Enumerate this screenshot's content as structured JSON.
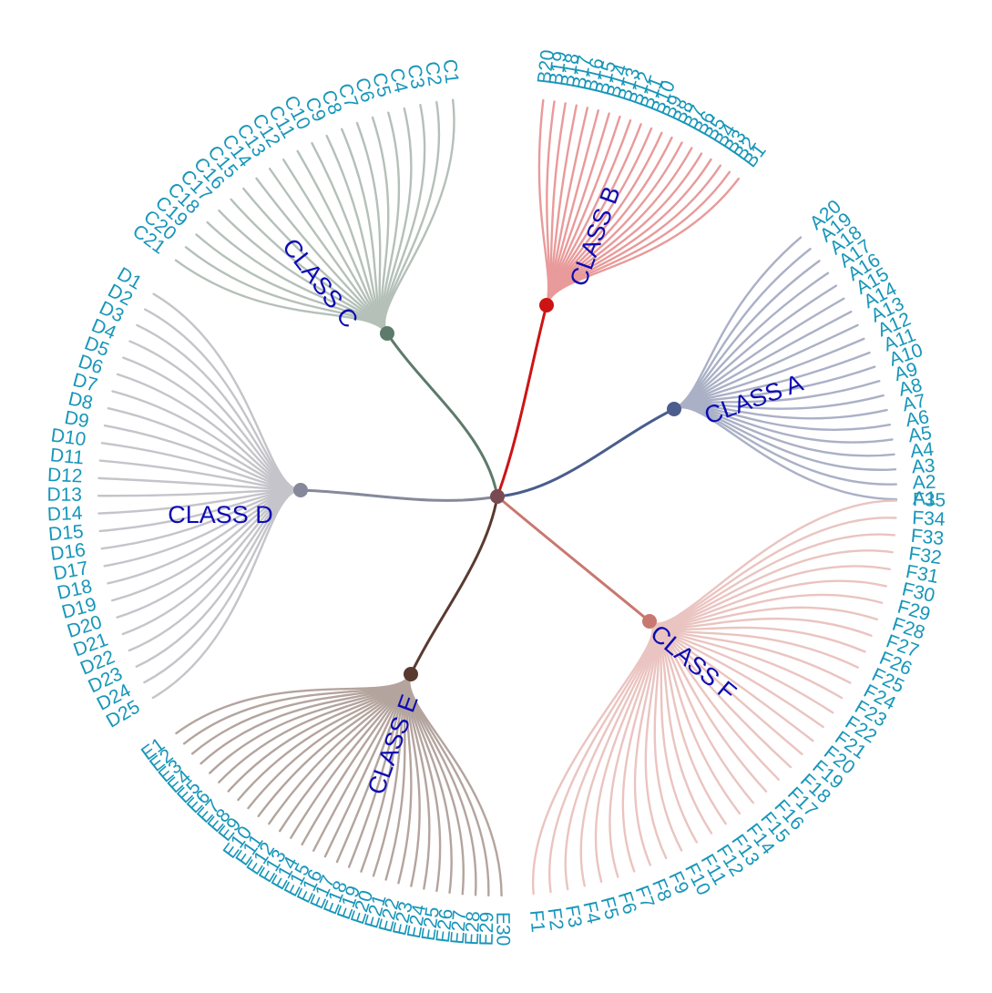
{
  "root": {
    "color": "#7a4a52"
  },
  "classes": [
    {
      "id": "A",
      "label": "CLASS A",
      "color": "#4a5d8c",
      "leaf_color": "#aab0c6",
      "count": 20,
      "leaves": [
        "A1",
        "A2",
        "A3",
        "A4",
        "A5",
        "A6",
        "A7",
        "A8",
        "A9",
        "A10",
        "A11",
        "A12",
        "A13",
        "A14",
        "A15",
        "A16",
        "A17",
        "A18",
        "A19",
        "A20"
      ]
    },
    {
      "id": "B",
      "label": "CLASS B",
      "color": "#cc1414",
      "leaf_color": "#e99a9a",
      "count": 20,
      "leaves": [
        "B1",
        "B2",
        "B3",
        "B4",
        "B5",
        "B6",
        "B7",
        "B8",
        "B9",
        "B10",
        "B11",
        "B12",
        "B13",
        "B14",
        "B15",
        "B16",
        "B17",
        "B18",
        "B19",
        "B20"
      ]
    },
    {
      "id": "C",
      "label": "CLASS C",
      "color": "#5d7a6a",
      "leaf_color": "#b4c0b8",
      "count": 21,
      "leaves": [
        "C1",
        "C2",
        "C3",
        "C4",
        "C5",
        "C6",
        "C7",
        "C8",
        "C9",
        "C10",
        "C11",
        "C12",
        "C13",
        "C14",
        "C15",
        "C16",
        "C17",
        "C18",
        "C19",
        "C20",
        "C21"
      ]
    },
    {
      "id": "D",
      "label": "CLASS D",
      "color": "#85899a",
      "leaf_color": "#c4c4ca",
      "count": 25,
      "leaves": [
        "D1",
        "D2",
        "D3",
        "D4",
        "D5",
        "D6",
        "D7",
        "D8",
        "D9",
        "D10",
        "D11",
        "D12",
        "D13",
        "D14",
        "D15",
        "D16",
        "D17",
        "D18",
        "D19",
        "D20",
        "D21",
        "D22",
        "D23",
        "D24",
        "D25"
      ]
    },
    {
      "id": "E",
      "label": "CLASS E",
      "color": "#5a3a30",
      "leaf_color": "#b4a49e",
      "count": 30,
      "leaves": [
        "E1",
        "E2",
        "E3",
        "E4",
        "E5",
        "E6",
        "E7",
        "E8",
        "E9",
        "E10",
        "E11",
        "E12",
        "E13",
        "E14",
        "E15",
        "E16",
        "E17",
        "E18",
        "E19",
        "E20",
        "E21",
        "E22",
        "E23",
        "E24",
        "E25",
        "E26",
        "E27",
        "E28",
        "E29",
        "E30"
      ]
    },
    {
      "id": "F",
      "label": "CLASS F",
      "color": "#c87870",
      "leaf_color": "#eac4c0",
      "count": 35,
      "leaves": [
        "F1",
        "F2",
        "F3",
        "F4",
        "F5",
        "F6",
        "F7",
        "F8",
        "F9",
        "F10",
        "F11",
        "F12",
        "F13",
        "F14",
        "F15",
        "F16",
        "F17",
        "F18",
        "F19",
        "F20",
        "F21",
        "F22",
        "F23",
        "F24",
        "F25",
        "F26",
        "F27",
        "F28",
        "F29",
        "F30",
        "F31",
        "F32",
        "F33",
        "F34",
        "F35"
      ]
    }
  ]
}
